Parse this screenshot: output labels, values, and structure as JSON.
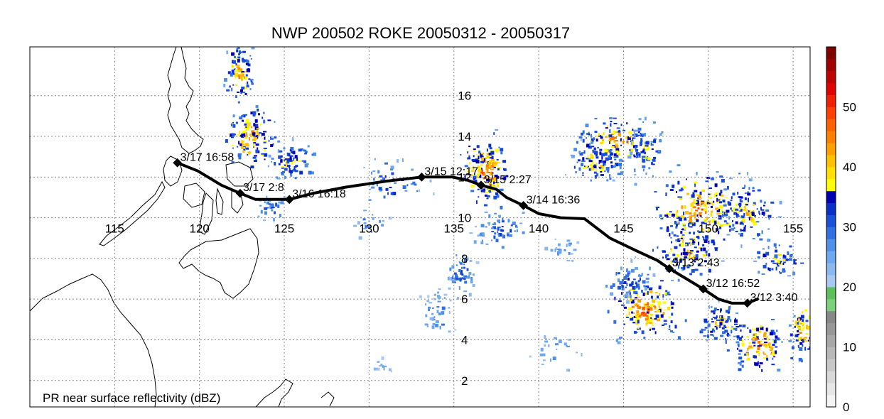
{
  "title": "NWP 200502 ROKE 20050312 - 20050317",
  "footnote": "PR near surface reflectivity (dBZ)",
  "colors": {
    "track": "#000000",
    "coast": "#000000",
    "grid": "#888888"
  },
  "map": {
    "lon_range": [
      110,
      156
    ],
    "lat_range": [
      0.7,
      18.4
    ],
    "lon_ticks": [
      115,
      120,
      125,
      130,
      135,
      140,
      145,
      150,
      155
    ],
    "lat_ticks": [
      2,
      4,
      6,
      8,
      10,
      12,
      14,
      16
    ],
    "lon_tick_labels": [
      "115",
      "120",
      "125",
      "130",
      "135",
      "140",
      "145",
      "150",
      "155"
    ],
    "lat_tick_labels": [
      "2",
      "4",
      "6",
      "8",
      "10",
      "12",
      "14",
      "16"
    ],
    "grid_lines": true
  },
  "colorbar": {
    "min": 0,
    "max": 60,
    "tick_labels": [
      "0",
      "10",
      "20",
      "30",
      "40",
      "50"
    ],
    "colors": [
      "#f4f4f4",
      "#e6e6e6",
      "#d8d8d8",
      "#c8c8c8",
      "#b8b8b8",
      "#a8a8a8",
      "#989898",
      "#888888",
      "#7ccf7c",
      "#5cbf5c",
      "#a8c8f0",
      "#8cb8f0",
      "#70a8f0",
      "#5090e8",
      "#3070e0",
      "#1a4fd8",
      "#0a2fc8",
      "#0000b0",
      "#ffff00",
      "#ffe000",
      "#ffc000",
      "#ffa000",
      "#ff8000",
      "#ff6000",
      "#ff4000",
      "#f02000",
      "#e00000",
      "#c00000",
      "#a00000",
      "#800000"
    ]
  },
  "track": {
    "points": [
      {
        "lon": 118.7,
        "lat": 12.7
      },
      {
        "lon": 119.9,
        "lat": 12.3
      },
      {
        "lon": 121.3,
        "lat": 11.6
      },
      {
        "lon": 122.4,
        "lat": 11.2
      },
      {
        "lon": 123.3,
        "lat": 10.9
      },
      {
        "lon": 124.4,
        "lat": 10.9
      },
      {
        "lon": 125.3,
        "lat": 10.9
      },
      {
        "lon": 126.7,
        "lat": 11.2
      },
      {
        "lon": 128.6,
        "lat": 11.5
      },
      {
        "lon": 131.0,
        "lat": 11.8
      },
      {
        "lon": 133.1,
        "lat": 12.0
      },
      {
        "lon": 134.9,
        "lat": 12.0
      },
      {
        "lon": 135.8,
        "lat": 11.85
      },
      {
        "lon": 136.6,
        "lat": 11.6
      },
      {
        "lon": 137.5,
        "lat": 11.4
      },
      {
        "lon": 138.1,
        "lat": 11.0
      },
      {
        "lon": 139.1,
        "lat": 10.6
      },
      {
        "lon": 140.0,
        "lat": 10.2
      },
      {
        "lon": 141.3,
        "lat": 10.0
      },
      {
        "lon": 142.7,
        "lat": 9.95
      },
      {
        "lon": 144.2,
        "lat": 9.0
      },
      {
        "lon": 145.7,
        "lat": 8.4
      },
      {
        "lon": 147.0,
        "lat": 7.9
      },
      {
        "lon": 147.7,
        "lat": 7.5
      },
      {
        "lon": 148.7,
        "lat": 7.0
      },
      {
        "lon": 149.7,
        "lat": 6.5
      },
      {
        "lon": 150.6,
        "lat": 6.0
      },
      {
        "lon": 151.4,
        "lat": 5.8
      },
      {
        "lon": 152.3,
        "lat": 5.8
      },
      {
        "lon": 152.9,
        "lat": 6.0
      }
    ],
    "markers": [
      {
        "lon": 118.7,
        "lat": 12.7,
        "label": "3/17 16:58"
      },
      {
        "lon": 122.4,
        "lat": 11.2,
        "label": "3/17 2:8"
      },
      {
        "lon": 125.3,
        "lat": 10.9,
        "label": "3/16 16:18"
      },
      {
        "lon": 133.1,
        "lat": 12.0,
        "label": "3/15 12:17"
      },
      {
        "lon": 136.6,
        "lat": 11.6,
        "label": "3/15 2:27"
      },
      {
        "lon": 139.1,
        "lat": 10.6,
        "label": "3/14 16:36"
      },
      {
        "lon": 147.7,
        "lat": 7.5,
        "label": "3/13 2:43"
      },
      {
        "lon": 149.7,
        "lat": 6.5,
        "label": "3/12 16:52"
      },
      {
        "lon": 152.3,
        "lat": 5.8,
        "label": "3/12 3:40"
      }
    ]
  },
  "reflectivity_clusters": [
    {
      "lon": 122.3,
      "lat": 17.2,
      "rlon": 0.8,
      "rlat": 1.2,
      "n": 90,
      "max_dbz": 48
    },
    {
      "lon": 123.0,
      "lat": 14.0,
      "rlon": 1.3,
      "rlat": 1.3,
      "n": 130,
      "max_dbz": 50
    },
    {
      "lon": 125.3,
      "lat": 12.8,
      "rlon": 1.3,
      "rlat": 0.8,
      "n": 80,
      "max_dbz": 42
    },
    {
      "lon": 124.2,
      "lat": 10.5,
      "rlon": 0.9,
      "rlat": 0.5,
      "n": 30,
      "max_dbz": 35
    },
    {
      "lon": 131.5,
      "lat": 11.8,
      "rlon": 1.8,
      "rlat": 1.0,
      "n": 45,
      "max_dbz": 38
    },
    {
      "lon": 130.0,
      "lat": 9.8,
      "rlon": 1.0,
      "rlat": 0.6,
      "n": 20,
      "max_dbz": 32
    },
    {
      "lon": 136.8,
      "lat": 12.4,
      "rlon": 1.2,
      "rlat": 1.4,
      "n": 170,
      "max_dbz": 52
    },
    {
      "lon": 137.8,
      "lat": 9.5,
      "rlon": 1.5,
      "rlat": 0.8,
      "n": 60,
      "max_dbz": 36
    },
    {
      "lon": 135.3,
      "lat": 7.3,
      "rlon": 0.8,
      "rlat": 1.0,
      "n": 55,
      "max_dbz": 35
    },
    {
      "lon": 134.0,
      "lat": 5.2,
      "rlon": 0.8,
      "rlat": 1.2,
      "n": 40,
      "max_dbz": 32
    },
    {
      "lon": 144.5,
      "lat": 13.8,
      "rlon": 1.9,
      "rlat": 1.2,
      "n": 140,
      "max_dbz": 48
    },
    {
      "lon": 143.3,
      "lat": 12.8,
      "rlon": 1.4,
      "rlat": 0.8,
      "n": 90,
      "max_dbz": 45
    },
    {
      "lon": 146.3,
      "lat": 13.3,
      "rlon": 1.0,
      "rlat": 1.3,
      "n": 60,
      "max_dbz": 40
    },
    {
      "lon": 149.5,
      "lat": 10.5,
      "rlon": 2.6,
      "rlat": 1.6,
      "n": 230,
      "max_dbz": 50
    },
    {
      "lon": 152.3,
      "lat": 10.3,
      "rlon": 1.4,
      "rlat": 1.2,
      "n": 110,
      "max_dbz": 45
    },
    {
      "lon": 148.8,
      "lat": 8.5,
      "rlon": 1.8,
      "rlat": 1.2,
      "n": 120,
      "max_dbz": 46
    },
    {
      "lon": 146.3,
      "lat": 5.6,
      "rlon": 1.9,
      "rlat": 1.3,
      "n": 170,
      "max_dbz": 52
    },
    {
      "lon": 145.3,
      "lat": 6.9,
      "rlon": 1.2,
      "rlat": 0.8,
      "n": 55,
      "max_dbz": 38
    },
    {
      "lon": 150.7,
      "lat": 4.8,
      "rlon": 1.2,
      "rlat": 0.8,
      "n": 90,
      "max_dbz": 45
    },
    {
      "lon": 153.0,
      "lat": 3.8,
      "rlon": 1.5,
      "rlat": 1.2,
      "n": 120,
      "max_dbz": 50
    },
    {
      "lon": 154.0,
      "lat": 8.0,
      "rlon": 1.4,
      "rlat": 0.9,
      "n": 60,
      "max_dbz": 42
    },
    {
      "lon": 155.5,
      "lat": 4.5,
      "rlon": 0.6,
      "rlat": 1.2,
      "n": 60,
      "max_dbz": 50
    },
    {
      "lon": 141.5,
      "lat": 8.5,
      "rlon": 1.0,
      "rlat": 0.6,
      "n": 25,
      "max_dbz": 30
    },
    {
      "lon": 141.0,
      "lat": 3.5,
      "rlon": 1.5,
      "rlat": 0.8,
      "n": 25,
      "max_dbz": 30
    },
    {
      "lon": 130.8,
      "lat": 2.8,
      "rlon": 0.6,
      "rlat": 0.3,
      "n": 12,
      "max_dbz": 28
    }
  ]
}
